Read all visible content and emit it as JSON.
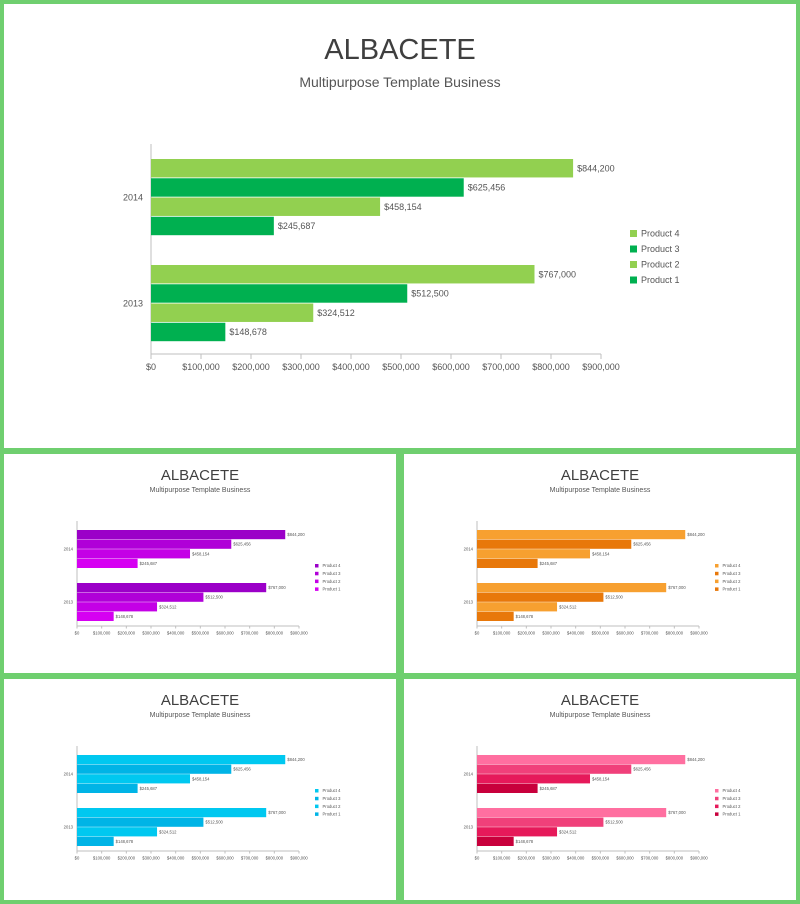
{
  "slides": [
    {
      "title": "ALBACETE",
      "subtitle": "Multipurpose Template Business",
      "palette": {
        "product4": "#92d050",
        "product3": "#00b050",
        "product2": "#92d050",
        "product1": "#00b050"
      }
    },
    {
      "title": "ALBACETE",
      "subtitle": "Multipurpose Template Business",
      "palette": {
        "product4": "#9b00c8",
        "product3": "#b000d8",
        "product2": "#c400e6",
        "product1": "#d600f2"
      }
    },
    {
      "title": "ALBACETE",
      "subtitle": "Multipurpose Template Business",
      "palette": {
        "product4": "#f7a030",
        "product3": "#e8780a",
        "product2": "#f7a030",
        "product1": "#e8780a"
      }
    },
    {
      "title": "ALBACETE",
      "subtitle": "Multipurpose Template Business",
      "palette": {
        "product4": "#00c8f0",
        "product3": "#00b4e6",
        "product2": "#00c8f0",
        "product1": "#00b4e6"
      }
    },
    {
      "title": "ALBACETE",
      "subtitle": "Multipurpose Template Business",
      "palette": {
        "product4": "#ff6fa0",
        "product3": "#f0407a",
        "product2": "#e6195a",
        "product1": "#c8003c"
      }
    }
  ],
  "chart_data": {
    "type": "bar",
    "orientation": "horizontal",
    "categories": [
      "2014",
      "2013"
    ],
    "series": [
      {
        "name": "Product 4",
        "values": [
          844200,
          767000
        ],
        "labels": [
          "$844,200",
          "$767,000"
        ]
      },
      {
        "name": "Product 3",
        "values": [
          625456,
          512500
        ],
        "labels": [
          "$625,456",
          "$512,500"
        ]
      },
      {
        "name": "Product 2",
        "values": [
          458154,
          324512
        ],
        "labels": [
          "$458,154",
          "$324,512"
        ]
      },
      {
        "name": "Product 1",
        "values": [
          245687,
          148678
        ],
        "labels": [
          "$245,687",
          "$148,678"
        ]
      }
    ],
    "xlim": [
      0,
      900000
    ],
    "ticks": [
      "$0",
      "$100,000",
      "$200,000",
      "$300,000",
      "$400,000",
      "$500,000",
      "$600,000",
      "$700,000",
      "$800,000",
      "$900,000"
    ],
    "legend_position": "right"
  }
}
